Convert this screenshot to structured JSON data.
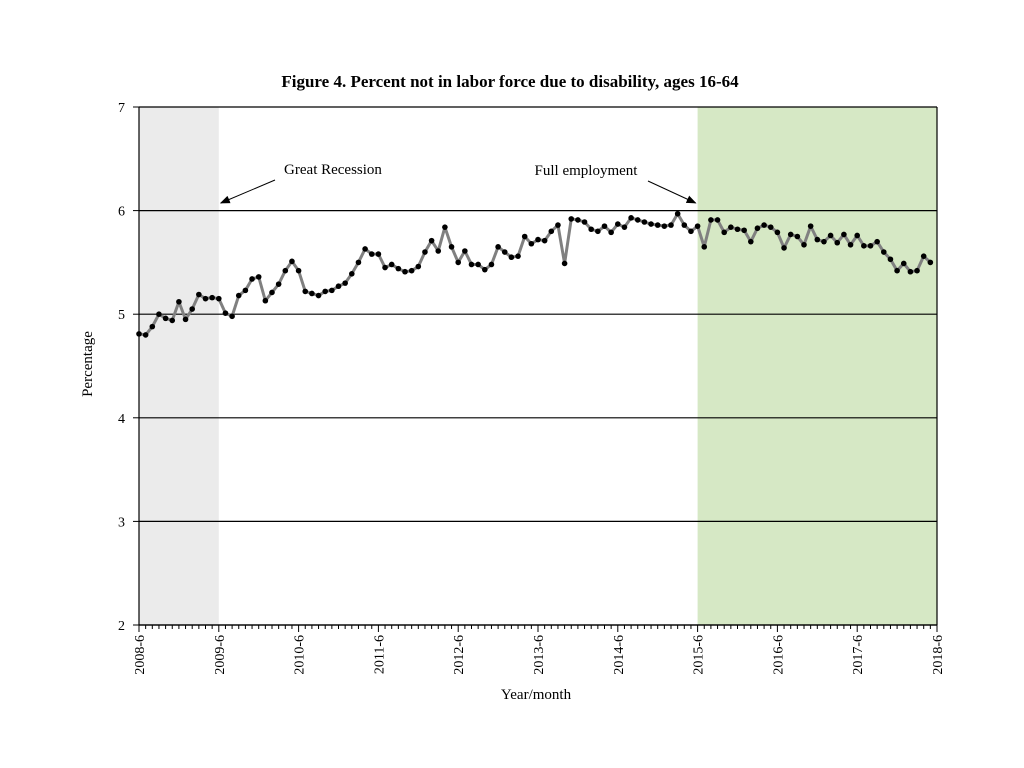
{
  "chart_data": {
    "type": "line",
    "title": "Figure 4. Percent not in labor force due to disability, ages 16-64",
    "xlabel": "Year/month",
    "ylabel": "Percentage",
    "ylim": [
      2,
      7
    ],
    "yticks": [
      "2",
      "3",
      "4",
      "5",
      "6",
      "7"
    ],
    "x_start": "2008-6",
    "x_end": "2018-5",
    "xtick_labels": [
      "2008-6",
      "2009-6",
      "2010-6",
      "2011-6",
      "2012-6",
      "2013-6",
      "2014-6",
      "2015-6",
      "2016-6",
      "2017-6",
      "2018-6"
    ],
    "grid": "horizontal",
    "marker": "circle",
    "colors": {
      "line": "#808080",
      "marker": "#000000",
      "recession_band": "#ebebeb",
      "full_employment_band": "#d6e8c5"
    },
    "shaded_periods": [
      {
        "from": "2008-6",
        "to": "2009-6",
        "label": "Great Recession"
      },
      {
        "from": "2015-6",
        "to": "2018-6",
        "label": "Full employment"
      }
    ],
    "annotations": [
      {
        "text": "Great Recession",
        "points_to": "2009-6"
      },
      {
        "text": "Full employment",
        "points_to": "2015-6"
      }
    ],
    "series": [
      {
        "values": [
          4.81,
          4.8,
          4.88,
          5.0,
          4.96,
          4.94,
          5.12,
          4.95,
          5.05,
          5.19,
          5.15,
          5.16,
          5.15,
          5.01,
          4.98,
          5.18,
          5.23,
          5.34,
          5.36,
          5.13,
          5.21,
          5.29,
          5.42,
          5.51,
          5.42,
          5.22,
          5.2,
          5.18,
          5.22,
          5.23,
          5.27,
          5.3,
          5.39,
          5.5,
          5.63,
          5.58,
          5.58,
          5.45,
          5.48,
          5.44,
          5.41,
          5.42,
          5.46,
          5.6,
          5.71,
          5.61,
          5.84,
          5.65,
          5.5,
          5.61,
          5.48,
          5.48,
          5.43,
          5.48,
          5.65,
          5.6,
          5.55,
          5.56,
          5.75,
          5.68,
          5.72,
          5.71,
          5.8,
          5.86,
          5.49,
          5.92,
          5.91,
          5.89,
          5.82,
          5.8,
          5.85,
          5.79,
          5.87,
          5.84,
          5.93,
          5.91,
          5.89,
          5.87,
          5.86,
          5.85,
          5.86,
          5.97,
          5.86,
          5.8,
          5.85,
          5.65,
          5.91,
          5.91,
          5.79,
          5.84,
          5.82,
          5.81,
          5.7,
          5.83,
          5.86,
          5.84,
          5.79,
          5.64,
          5.77,
          5.75,
          5.67,
          5.85,
          5.72,
          5.7,
          5.76,
          5.69,
          5.77,
          5.67,
          5.76,
          5.66,
          5.66,
          5.7,
          5.6,
          5.53,
          5.42,
          5.49,
          5.41,
          5.42,
          5.56,
          5.5
        ]
      }
    ]
  }
}
